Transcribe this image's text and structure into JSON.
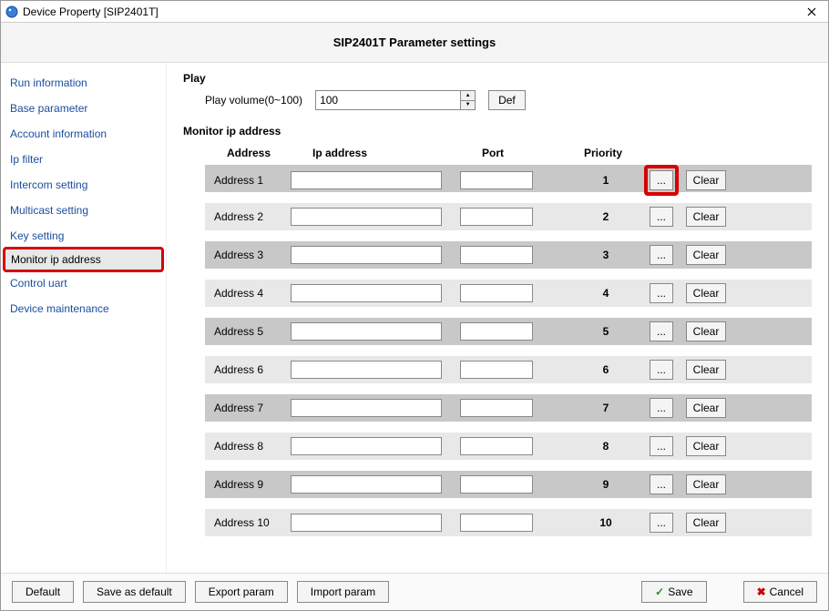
{
  "window": {
    "title": "Device Property [SIP2401T]"
  },
  "header": {
    "title": "SIP2401T Parameter settings"
  },
  "sidebar": {
    "items": [
      {
        "label": "Run information"
      },
      {
        "label": "Base parameter"
      },
      {
        "label": "Account information"
      },
      {
        "label": "Ip filter"
      },
      {
        "label": "Intercom setting"
      },
      {
        "label": "Multicast setting"
      },
      {
        "label": "Key setting"
      },
      {
        "label": "Monitor ip address"
      },
      {
        "label": "Control uart"
      },
      {
        "label": "Device maintenance"
      }
    ],
    "selected_index": 7,
    "highlight_index": 7
  },
  "play": {
    "section_title": "Play",
    "volume_label": "Play volume(0~100)",
    "volume_value": "100",
    "def_button": "Def"
  },
  "monitor": {
    "section_title": "Monitor ip address",
    "columns": {
      "address": "Address",
      "ip": "Ip address",
      "port": "Port",
      "priority": "Priority"
    },
    "rows": [
      {
        "label": "Address 1",
        "ip": "",
        "port": "",
        "priority": "1",
        "highlight_browse": true
      },
      {
        "label": "Address 2",
        "ip": "",
        "port": "",
        "priority": "2",
        "highlight_browse": false
      },
      {
        "label": "Address 3",
        "ip": "",
        "port": "",
        "priority": "3",
        "highlight_browse": false
      },
      {
        "label": "Address 4",
        "ip": "",
        "port": "",
        "priority": "4",
        "highlight_browse": false
      },
      {
        "label": "Address 5",
        "ip": "",
        "port": "",
        "priority": "5",
        "highlight_browse": false
      },
      {
        "label": "Address 6",
        "ip": "",
        "port": "",
        "priority": "6",
        "highlight_browse": false
      },
      {
        "label": "Address 7",
        "ip": "",
        "port": "",
        "priority": "7",
        "highlight_browse": false
      },
      {
        "label": "Address 8",
        "ip": "",
        "port": "",
        "priority": "8",
        "highlight_browse": false
      },
      {
        "label": "Address 9",
        "ip": "",
        "port": "",
        "priority": "9",
        "highlight_browse": false
      },
      {
        "label": "Address 10",
        "ip": "",
        "port": "",
        "priority": "10",
        "highlight_browse": false
      }
    ],
    "browse_button": "...",
    "clear_button": "Clear"
  },
  "footer": {
    "default": "Default",
    "save_as_default": "Save as default",
    "export_param": "Export param",
    "import_param": "Import param",
    "save": "Save",
    "cancel": "Cancel"
  },
  "colors": {
    "highlight_border": "#d80000",
    "row_dark": "#c8c8c8",
    "row_light": "#e8e8e8",
    "link": "#1a4d9e"
  }
}
